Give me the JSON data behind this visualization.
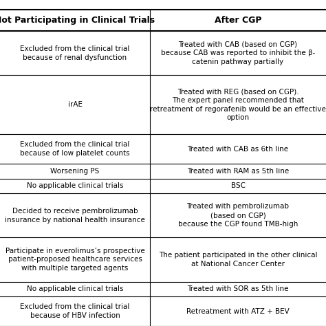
{
  "title": "",
  "col1_header": "Not Participating in Clinical Trials",
  "col2_header": "After CGP",
  "rows": [
    {
      "col1": "Excluded from the clinical trial\nbecause of renal dysfunction",
      "col2": "Treated with CAB (based on CGP)\nbecause CAB was reported to inhibit the β-\ncatenin pathway partially"
    },
    {
      "col1": "irAE",
      "col2": "Treated with REG (based on CGP).\nThe expert panel recommended that\nretreatment of regorafenib would be an effective\noption"
    },
    {
      "col1": "Excluded from the clinical trial\nbecause of low platelet counts",
      "col2": "Treated with CAB as 6th line"
    },
    {
      "col1": "Worsening PS",
      "col2": "Treated with RAM as 5th line"
    },
    {
      "col1": "No applicable clinical trials",
      "col2": "BSC"
    },
    {
      "col1": "Decided to receive pembrolizumab\ninsurance by national health insurance",
      "col2": "Treated with pembrolizumab\n(based on CGP)\nbecause the CGP found TMB-high"
    },
    {
      "col1": "Participate in everolimus’s prospective\npatient-proposed healthcare services\nwith multiple targeted agents",
      "col2": "The patient participated in the other clinical\nat National Cancer Center"
    },
    {
      "col1": "No applicable clinical trials",
      "col2": "Treated with SOR as 5th line"
    },
    {
      "col1": "Excluded from the clinical trial\nbecause of HBV infection",
      "col2": "Retreatment with ATZ + BEV"
    }
  ],
  "bg_color": "#ffffff",
  "text_color": "#000000",
  "line_color": "#000000",
  "header_fontsize": 9,
  "cell_fontsize": 7.5
}
